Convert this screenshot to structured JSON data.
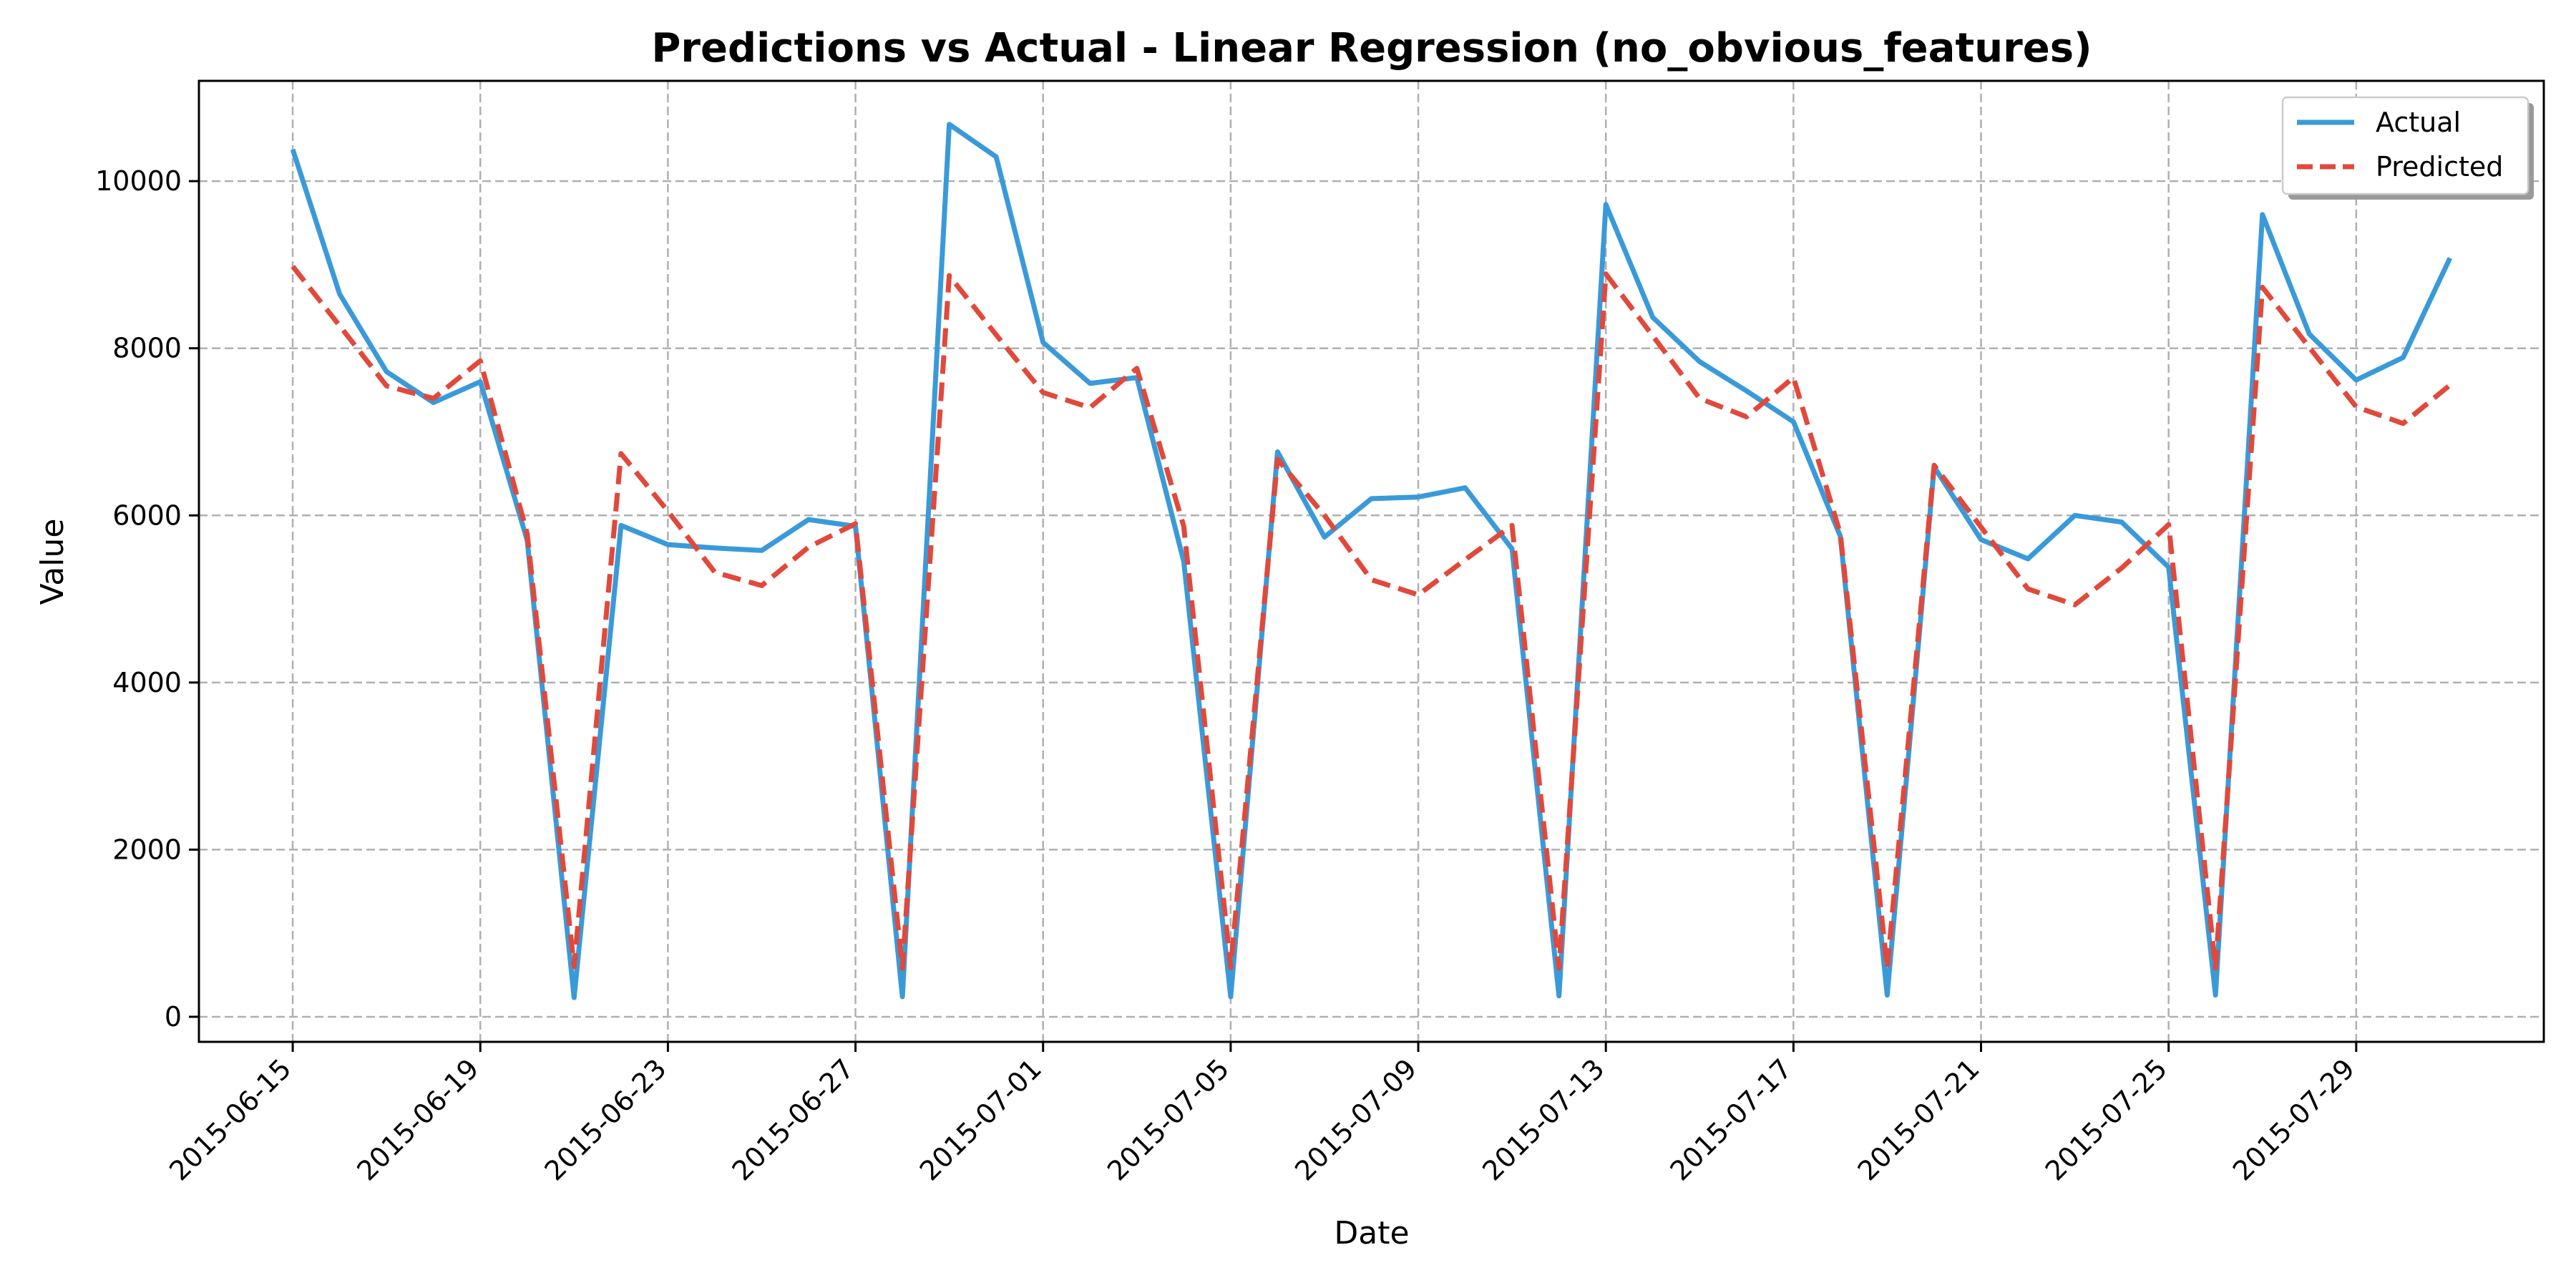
{
  "chart_data": {
    "type": "line",
    "title": "Predictions vs Actual - Linear Regression (no_obvious_features)",
    "xlabel": "Date",
    "ylabel": "Value",
    "grid": true,
    "legend_position": "top-right",
    "ylim": [
      -300,
      11200
    ],
    "xlim": [
      "2015-06-13",
      "2015-08-02"
    ],
    "y_ticks": [
      0,
      2000,
      4000,
      6000,
      8000,
      10000
    ],
    "x_ticks": [
      "2015-06-15",
      "2015-06-19",
      "2015-06-23",
      "2015-06-27",
      "2015-07-01",
      "2015-07-05",
      "2015-07-09",
      "2015-07-13",
      "2015-07-17",
      "2015-07-21",
      "2015-07-25",
      "2015-07-29"
    ],
    "x": [
      "2015-06-15",
      "2015-06-16",
      "2015-06-17",
      "2015-06-18",
      "2015-06-19",
      "2015-06-20",
      "2015-06-21",
      "2015-06-22",
      "2015-06-23",
      "2015-06-24",
      "2015-06-25",
      "2015-06-26",
      "2015-06-27",
      "2015-06-28",
      "2015-06-29",
      "2015-06-30",
      "2015-07-01",
      "2015-07-02",
      "2015-07-03",
      "2015-07-04",
      "2015-07-05",
      "2015-07-06",
      "2015-07-07",
      "2015-07-08",
      "2015-07-09",
      "2015-07-10",
      "2015-07-11",
      "2015-07-12",
      "2015-07-13",
      "2015-07-14",
      "2015-07-15",
      "2015-07-16",
      "2015-07-17",
      "2015-07-18",
      "2015-07-19",
      "2015-07-20",
      "2015-07-21",
      "2015-07-22",
      "2015-07-23",
      "2015-07-24",
      "2015-07-25",
      "2015-07-26",
      "2015-07-27",
      "2015-07-28",
      "2015-07-29",
      "2015-07-30",
      "2015-07-31"
    ],
    "series": [
      {
        "name": "Actual",
        "color": "#3a9ad9",
        "style": "solid",
        "values": [
          10380,
          8650,
          7720,
          7350,
          7600,
          5700,
          230,
          5880,
          5650,
          5610,
          5580,
          5950,
          5870,
          240,
          10680,
          10290,
          8070,
          7580,
          7650,
          5450,
          240,
          6760,
          5740,
          6200,
          6220,
          6330,
          5600,
          250,
          9720,
          8370,
          7840,
          7490,
          7120,
          5750,
          260,
          6580,
          5710,
          5480,
          6000,
          5920,
          5380,
          260,
          9600,
          8170,
          7620,
          7890,
          9080
        ]
      },
      {
        "name": "Predicted",
        "color": "#e0493b",
        "style": "dashed",
        "values": [
          8980,
          8270,
          7550,
          7400,
          7850,
          5780,
          600,
          6740,
          6050,
          5320,
          5160,
          5620,
          5900,
          580,
          8870,
          8160,
          7470,
          7290,
          7760,
          5870,
          590,
          6670,
          6000,
          5230,
          5050,
          5470,
          5880,
          580,
          8890,
          8150,
          7400,
          7180,
          7650,
          5780,
          580,
          6600,
          5860,
          5120,
          4930,
          5370,
          5890,
          580,
          8730,
          8010,
          7300,
          7100,
          7560
        ]
      }
    ]
  }
}
